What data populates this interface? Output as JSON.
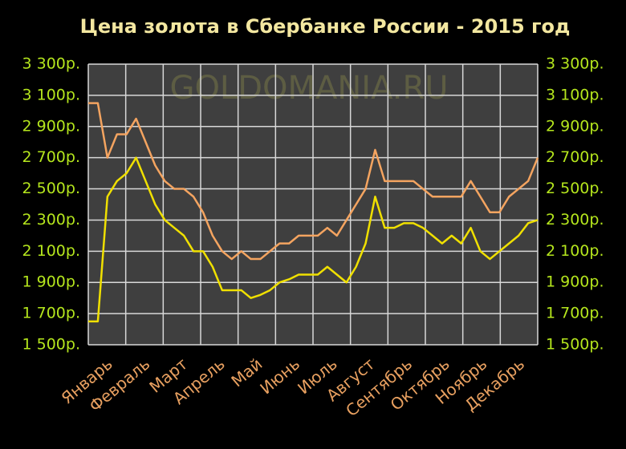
{
  "chart_data": {
    "type": "line",
    "title": "Цена золота в Сбербанке России - 2015 год",
    "watermark": "GOLDOMANIA.RU",
    "categories": [
      "Январь",
      null,
      null,
      null,
      "Февраль",
      null,
      null,
      null,
      "Март",
      null,
      null,
      null,
      "Апрель",
      null,
      null,
      null,
      "Май",
      null,
      null,
      null,
      "Июнь",
      null,
      null,
      null,
      "Июль",
      null,
      null,
      null,
      "Август",
      null,
      null,
      null,
      "Сентябрь",
      null,
      null,
      null,
      "Октябрь",
      null,
      null,
      null,
      "Ноябрь",
      null,
      null,
      null,
      "Декабрь",
      null,
      null,
      null
    ],
    "series": [
      {
        "color": "#f4a460",
        "values": [
          3050,
          3050,
          2700,
          2850,
          2850,
          2950,
          2800,
          2650,
          2550,
          2500,
          2500,
          2450,
          2350,
          2200,
          2100,
          2050,
          2100,
          2050,
          2050,
          2100,
          2150,
          2150,
          2200,
          2200,
          2200,
          2250,
          2200,
          2300,
          2400,
          2500,
          2750,
          2550,
          2550,
          2550,
          2550,
          2500,
          2450,
          2450,
          2450,
          2450,
          2550,
          2450,
          2350,
          2350,
          2450,
          2500,
          2550,
          2700
        ]
      },
      {
        "color": "#f0e000",
        "values": [
          1650,
          1650,
          2450,
          2550,
          2600,
          2700,
          2550,
          2400,
          2300,
          2250,
          2200,
          2100,
          2100,
          2000,
          1850,
          1850,
          1850,
          1800,
          1820,
          1850,
          1900,
          1920,
          1950,
          1950,
          1950,
          2000,
          1950,
          1900,
          2000,
          2150,
          2450,
          2250,
          2250,
          2280,
          2280,
          2250,
          2200,
          2150,
          2200,
          2150,
          2250,
          2100,
          2050,
          2100,
          2150,
          2200,
          2280,
          2300
        ]
      }
    ],
    "ylim": [
      1500,
      3300
    ],
    "yticks": [
      {
        "value": 1500,
        "label": "1 500р."
      },
      {
        "value": 1700,
        "label": "1 700р."
      },
      {
        "value": 1900,
        "label": "1 900р."
      },
      {
        "value": 2100,
        "label": "2 100р."
      },
      {
        "value": 2300,
        "label": "2 300р."
      },
      {
        "value": 2500,
        "label": "2 500р."
      },
      {
        "value": 2700,
        "label": "2 700р."
      },
      {
        "value": 2900,
        "label": "2 900р."
      },
      {
        "value": 3100,
        "label": "3 100р."
      },
      {
        "value": 3300,
        "label": "3 300р."
      }
    ],
    "grid": true
  }
}
